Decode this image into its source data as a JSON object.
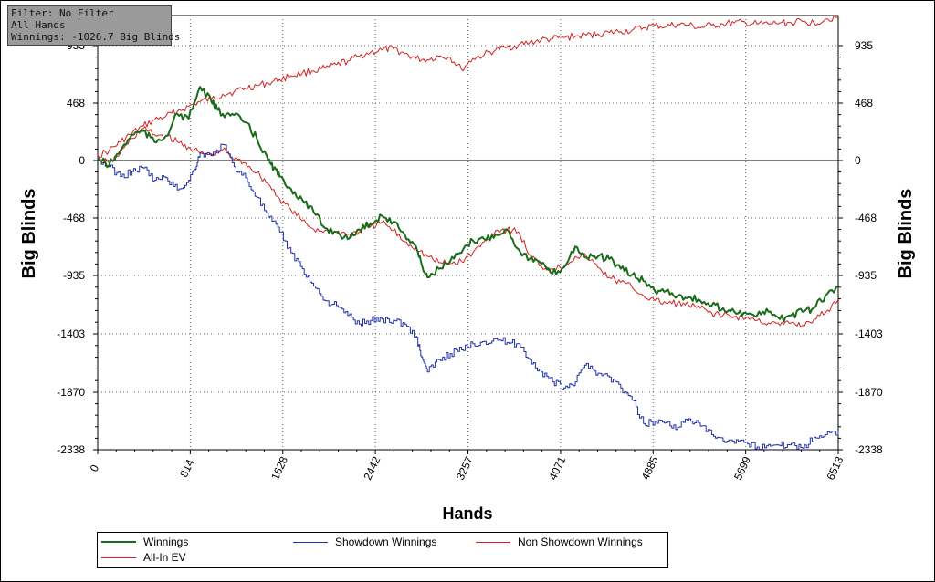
{
  "info_box": {
    "filter": "Filter: No Filter",
    "hands": "All Hands",
    "winnings": "Winnings: -1026.7 Big Blinds"
  },
  "colors": {
    "winnings": "#1a6b1a",
    "showdown": "#1f2fa8",
    "non_showdown": "#d42020",
    "all_in_ev": "#d42020"
  },
  "legend": {
    "winnings": "Winnings",
    "showdown": "Showdown Winnings",
    "non_showdown": "Non Showdown Winnings",
    "all_in_ev": "All-In EV"
  },
  "chart_data": {
    "type": "line",
    "title": "",
    "xlabel": "Hands",
    "ylabel": "Big Blinds",
    "xlim": [
      0,
      6513
    ],
    "ylim": [
      -2338,
      1160
    ],
    "x_ticks": [
      "0",
      "814",
      "1628",
      "2442",
      "3257",
      "4071",
      "4885",
      "5699",
      "6513"
    ],
    "y_ticks": [
      "935",
      "468",
      "0",
      "-468",
      "-935",
      "-1403",
      "-1870",
      "-2338"
    ],
    "grid": true,
    "legend_position": "bottom",
    "series": [
      {
        "name": "Winnings",
        "x": [
          0,
          100,
          200,
          300,
          400,
          500,
          600,
          700,
          800,
          900,
          1000,
          1050,
          1100,
          1200,
          1300,
          1400,
          1500,
          1550,
          1600,
          1700,
          1800,
          1900,
          2000,
          2100,
          2200,
          2300,
          2400,
          2500,
          2600,
          2700,
          2800,
          2850,
          2900,
          3000,
          3100,
          3200,
          3300,
          3400,
          3500,
          3600,
          3700,
          3800,
          3900,
          4000,
          4100,
          4200,
          4300,
          4400,
          4500,
          4600,
          4700,
          4800,
          4900,
          5000,
          5100,
          5200,
          5300,
          5400,
          5500,
          5600,
          5700,
          5800,
          5900,
          6000,
          6100,
          6200,
          6300,
          6400,
          6513
        ],
        "y": [
          20,
          -40,
          80,
          210,
          240,
          150,
          200,
          380,
          340,
          600,
          480,
          420,
          380,
          370,
          310,
          180,
          0,
          -60,
          -130,
          -230,
          -320,
          -420,
          -550,
          -580,
          -640,
          -560,
          -510,
          -450,
          -500,
          -600,
          -700,
          -850,
          -950,
          -880,
          -820,
          -750,
          -650,
          -640,
          -600,
          -560,
          -720,
          -800,
          -840,
          -920,
          -870,
          -700,
          -790,
          -780,
          -800,
          -880,
          -930,
          -980,
          -1060,
          -1060,
          -1100,
          -1110,
          -1140,
          -1180,
          -1200,
          -1230,
          -1240,
          -1260,
          -1230,
          -1290,
          -1260,
          -1230,
          -1200,
          -1100,
          -1030
        ]
      },
      {
        "name": "Showdown Winnings",
        "x": [
          0,
          100,
          200,
          300,
          400,
          500,
          600,
          700,
          800,
          850,
          900,
          1000,
          1100,
          1200,
          1300,
          1400,
          1500,
          1600,
          1700,
          1800,
          1900,
          2000,
          2100,
          2200,
          2300,
          2400,
          2500,
          2600,
          2700,
          2800,
          2850,
          2900,
          3000,
          3100,
          3200,
          3300,
          3400,
          3500,
          3600,
          3700,
          3800,
          3900,
          4000,
          4100,
          4200,
          4300,
          4400,
          4500,
          4600,
          4700,
          4800,
          4900,
          5000,
          5100,
          5200,
          5300,
          5400,
          5500,
          5600,
          5700,
          5800,
          5900,
          6000,
          6100,
          6200,
          6300,
          6400,
          6513
        ],
        "y": [
          0,
          -50,
          -130,
          -90,
          -60,
          -160,
          -140,
          -240,
          -160,
          -70,
          60,
          40,
          130,
          -50,
          -140,
          -300,
          -460,
          -580,
          -750,
          -880,
          -1020,
          -1140,
          -1180,
          -1260,
          -1330,
          -1300,
          -1290,
          -1300,
          -1330,
          -1430,
          -1600,
          -1720,
          -1620,
          -1570,
          -1540,
          -1490,
          -1470,
          -1450,
          -1480,
          -1490,
          -1620,
          -1720,
          -1800,
          -1850,
          -1800,
          -1650,
          -1730,
          -1760,
          -1850,
          -1950,
          -2140,
          -2120,
          -2130,
          -2170,
          -2100,
          -2160,
          -2230,
          -2280,
          -2300,
          -2290,
          -2330,
          -2310,
          -2320,
          -2300,
          -2340,
          -2250,
          -2230,
          -2200
        ]
      },
      {
        "name": "Non Showdown Winnings",
        "x": [
          0,
          100,
          200,
          300,
          400,
          500,
          600,
          700,
          800,
          900,
          1000,
          1100,
          1200,
          1300,
          1400,
          1500,
          1600,
          1700,
          1800,
          1900,
          2000,
          2100,
          2200,
          2300,
          2400,
          2500,
          2600,
          2700,
          2800,
          2900,
          3000,
          3100,
          3200,
          3300,
          3400,
          3500,
          3600,
          3700,
          3800,
          3900,
          4000,
          4100,
          4200,
          4300,
          4400,
          4500,
          4600,
          4700,
          4800,
          4900,
          5000,
          5100,
          5200,
          5300,
          5400,
          5500,
          5600,
          5700,
          5800,
          5900,
          6000,
          6100,
          6200,
          6300,
          6400,
          6513
        ],
        "y": [
          10,
          -20,
          60,
          180,
          260,
          210,
          200,
          150,
          110,
          60,
          40,
          90,
          10,
          -20,
          -100,
          -190,
          -310,
          -400,
          -490,
          -560,
          -570,
          -580,
          -600,
          -580,
          -540,
          -500,
          -570,
          -660,
          -710,
          -780,
          -830,
          -840,
          -820,
          -750,
          -660,
          -570,
          -560,
          -580,
          -770,
          -860,
          -880,
          -860,
          -780,
          -780,
          -870,
          -950,
          -990,
          -1030,
          -1100,
          -1140,
          -1160,
          -1160,
          -1180,
          -1200,
          -1240,
          -1260,
          -1270,
          -1280,
          -1300,
          -1320,
          -1340,
          -1320,
          -1340,
          -1290,
          -1240,
          -1130
        ]
      },
      {
        "name": "All-In EV",
        "x": [
          0,
          100,
          200,
          300,
          400,
          500,
          600,
          700,
          800,
          900,
          1000,
          1100,
          1200,
          1300,
          1400,
          1500,
          1600,
          1700,
          1800,
          1900,
          2000,
          2100,
          2200,
          2300,
          2400,
          2500,
          2600,
          2700,
          2800,
          2900,
          3000,
          3100,
          3200,
          3300,
          3400,
          3500,
          3600,
          3700,
          3800,
          3900,
          4000,
          4100,
          4200,
          4300,
          4400,
          4500,
          4600,
          4700,
          4800,
          4900,
          5000,
          5100,
          5200,
          5300,
          5400,
          5500,
          5600,
          5700,
          5800,
          5900,
          6000,
          6100,
          6200,
          6300,
          6400,
          6513
        ],
        "y": [
          40,
          80,
          150,
          220,
          280,
          330,
          360,
          400,
          440,
          480,
          500,
          540,
          560,
          590,
          610,
          630,
          660,
          690,
          710,
          730,
          750,
          780,
          810,
          850,
          880,
          900,
          910,
          870,
          830,
          820,
          850,
          840,
          740,
          830,
          860,
          900,
          920,
          940,
          960,
          980,
          990,
          1000,
          1010,
          1020,
          1030,
          1040,
          1050,
          1060,
          1080,
          1100,
          1090,
          1110,
          1100,
          1080,
          1100,
          1110,
          1120,
          1120,
          1110,
          1110,
          1120,
          1120,
          1130,
          1120,
          1150,
          1170
        ]
      }
    ]
  }
}
